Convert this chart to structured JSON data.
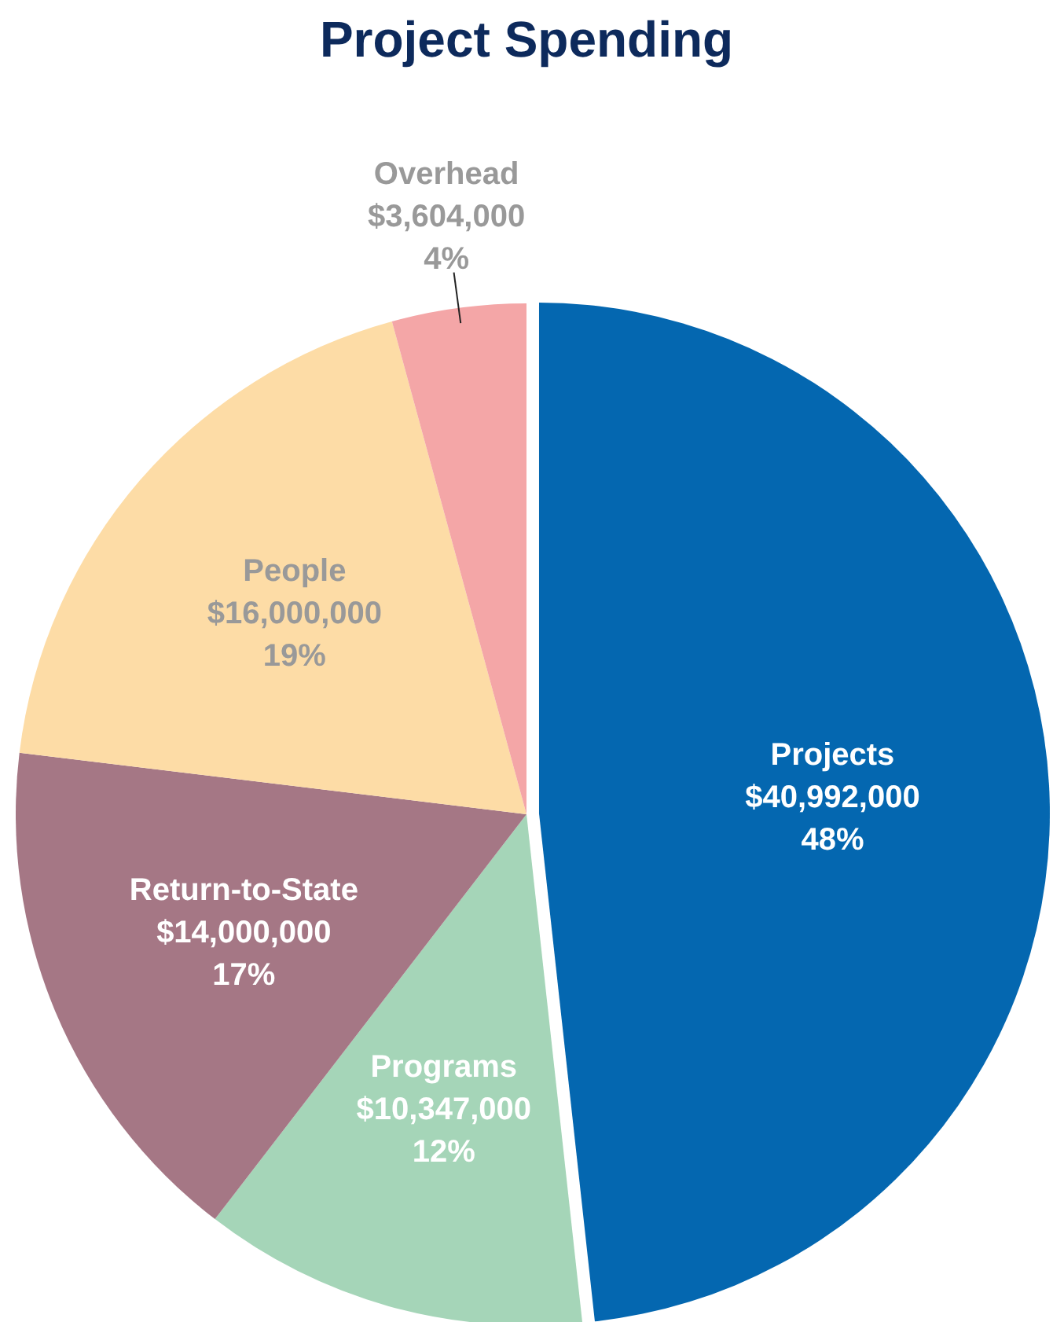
{
  "chart_data": {
    "type": "pie",
    "title": "Project Spending",
    "categories": [
      "Projects",
      "Programs",
      "Return-to-State",
      "People",
      "Overhead"
    ],
    "values": [
      40992000,
      10347000,
      14000000,
      16000000,
      3604000
    ],
    "colors": [
      "#0467b0",
      "#a5d5b8",
      "#a57785",
      "#fddca6",
      "#f4a6a7"
    ],
    "value_labels": [
      "$40,992,000\n48%",
      "$10,347,000\n12%",
      "$14,000,000\n17%",
      "$16,000,000\n19%",
      "$3,604,000\n4%"
    ]
  }
}
